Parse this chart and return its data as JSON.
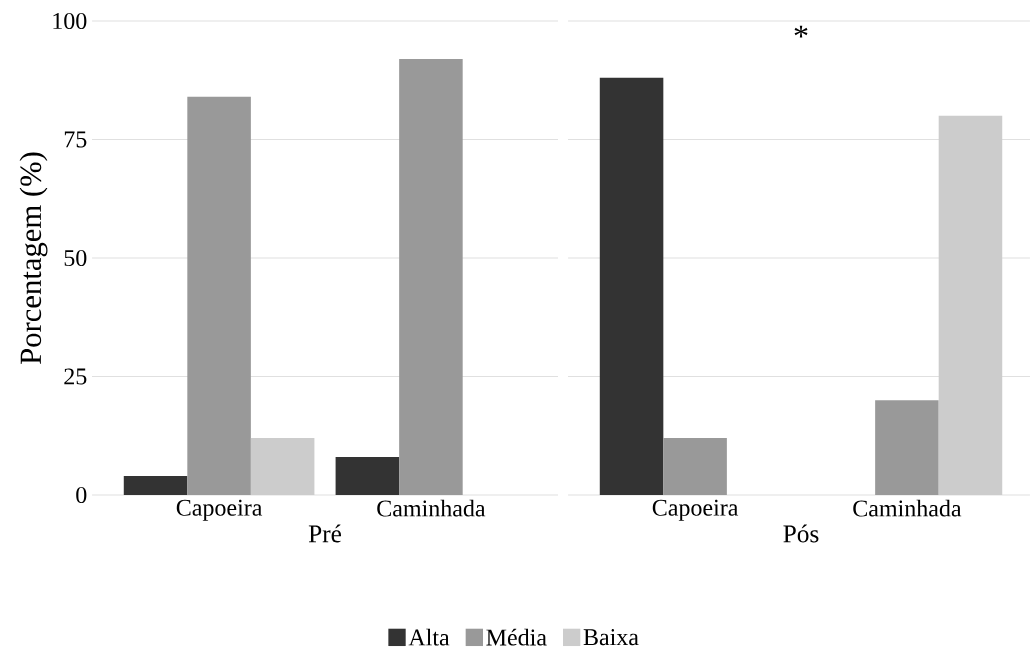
{
  "chart_data": [
    {
      "type": "bar",
      "categories": [
        "Capoeira",
        "Caminhada"
      ],
      "xlabel": "Pré",
      "ylabel": "Porcentagem (%)",
      "series": [
        {
          "name": "Alta",
          "color": "#333333",
          "values": [
            4,
            8
          ]
        },
        {
          "name": "Média",
          "color": "#999999",
          "values": [
            84,
            92
          ]
        },
        {
          "name": "Baixa",
          "color": "#cccccc",
          "values": [
            12,
            0
          ]
        }
      ],
      "ylim": [
        0,
        100
      ],
      "yticks": [
        0,
        25,
        50,
        75,
        100
      ],
      "grid": "y",
      "legend": "bottom"
    },
    {
      "type": "bar",
      "categories": [
        "Capoeira",
        "Caminhada"
      ],
      "xlabel": "Pós",
      "annotations": [
        "*"
      ],
      "series": [
        {
          "color": "#333333",
          "values": [
            88,
            0
          ]
        },
        {
          "color": "#999999",
          "values": [
            12,
            20
          ]
        },
        {
          "color": "#cccccc",
          "values": [
            0,
            80
          ]
        }
      ],
      "ylim": [
        0,
        100
      ],
      "yticks": [
        0,
        25,
        50,
        75,
        100
      ],
      "grid": "y",
      "tick_labels": "x",
      "legend": false
    }
  ]
}
